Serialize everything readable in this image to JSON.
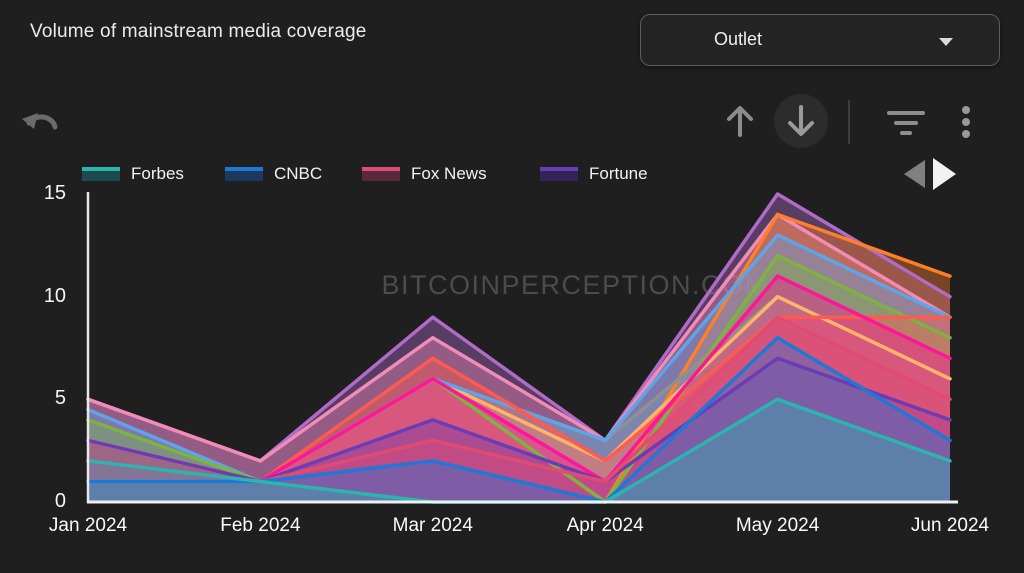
{
  "header": {
    "title": "Volume of mainstream media coverage",
    "outlet": {
      "label": "Outlet"
    }
  },
  "toolbar": {
    "icons": [
      "undo-icon",
      "scroll-up-icon",
      "scroll-down-icon",
      "filter-icon",
      "kebab-menu-icon"
    ]
  },
  "legend": {
    "visible_items": [
      {
        "label": "Forbes",
        "line_color": "#2ab5ae",
        "fill_color": "#1d4a4d"
      },
      {
        "label": "CNBC",
        "line_color": "#1e78d8",
        "fill_color": "#1c3a5e"
      },
      {
        "label": "Fox News",
        "line_color": "#e14b72",
        "fill_color": "#58283c"
      },
      {
        "label": "Fortune",
        "line_color": "#6a3cb5",
        "fill_color": "#322457"
      }
    ],
    "pagination": {
      "prev_color": "#808080",
      "next_color": "#f2f2f2"
    }
  },
  "chart_data": {
    "type": "area",
    "title": "Volume of mainstream media coverage",
    "x": [
      "Jan 2024",
      "Feb 2024",
      "Mar 2024",
      "Apr 2024",
      "May 2024",
      "Jun 2024"
    ],
    "ylim": [
      0,
      15
    ],
    "yticks": [
      0,
      5,
      10,
      15
    ],
    "grid": false,
    "legend_position": "top-left, paginated (4 of many series shown)",
    "watermark": "BITCOINPERCEPTION.COM",
    "xlabel": "",
    "ylabel": "",
    "series": [
      {
        "name": "unlabeled-violet",
        "labeled": false,
        "color": "#b06bc8",
        "values": [
          5,
          2,
          9,
          3,
          15,
          10
        ]
      },
      {
        "name": "unlabeled-light-pink",
        "labeled": false,
        "color": "#f18cb8",
        "values": [
          5,
          2,
          8,
          3,
          14,
          9
        ]
      },
      {
        "name": "unlabeled-orange",
        "labeled": false,
        "color": "#ff7f27",
        "values": [
          3,
          1,
          6,
          0,
          14,
          11
        ]
      },
      {
        "name": "unlabeled-gray",
        "labeled": false,
        "color": "#909090",
        "values": [
          1,
          1,
          6,
          3,
          10,
          6
        ]
      },
      {
        "name": "unlabeled-sandy",
        "labeled": false,
        "color": "#ffb469",
        "values": [
          3,
          1,
          6,
          2,
          10,
          6
        ]
      },
      {
        "name": "unlabeled-sky-blue",
        "labeled": false,
        "color": "#5da5e8",
        "values": [
          4.5,
          1,
          6,
          3,
          13,
          9
        ]
      },
      {
        "name": "unlabeled-green",
        "labeled": false,
        "color": "#7cb342",
        "values": [
          4,
          1,
          6,
          0,
          12,
          8
        ]
      },
      {
        "name": "unlabeled-red",
        "labeled": false,
        "color": "#ff5a50",
        "values": [
          3,
          1,
          7,
          2,
          9,
          9
        ]
      },
      {
        "name": "unlabeled-magenta",
        "labeled": false,
        "color": "#ff149b",
        "values": [
          2,
          1,
          6,
          1,
          11,
          7
        ]
      },
      {
        "name": "Fortune",
        "labeled": true,
        "color": "#6a3cb5",
        "values": [
          3,
          1,
          4,
          1,
          7,
          4
        ]
      },
      {
        "name": "Fox News",
        "labeled": true,
        "color": "#e14b72",
        "values": [
          2,
          1,
          3,
          1,
          9,
          5
        ]
      },
      {
        "name": "CNBC",
        "labeled": true,
        "color": "#1e78d8",
        "values": [
          1,
          1,
          2,
          0,
          8,
          3
        ]
      },
      {
        "name": "Forbes",
        "labeled": true,
        "color": "#2ab5ae",
        "values": [
          2,
          1,
          0,
          0,
          5,
          2
        ]
      }
    ]
  }
}
